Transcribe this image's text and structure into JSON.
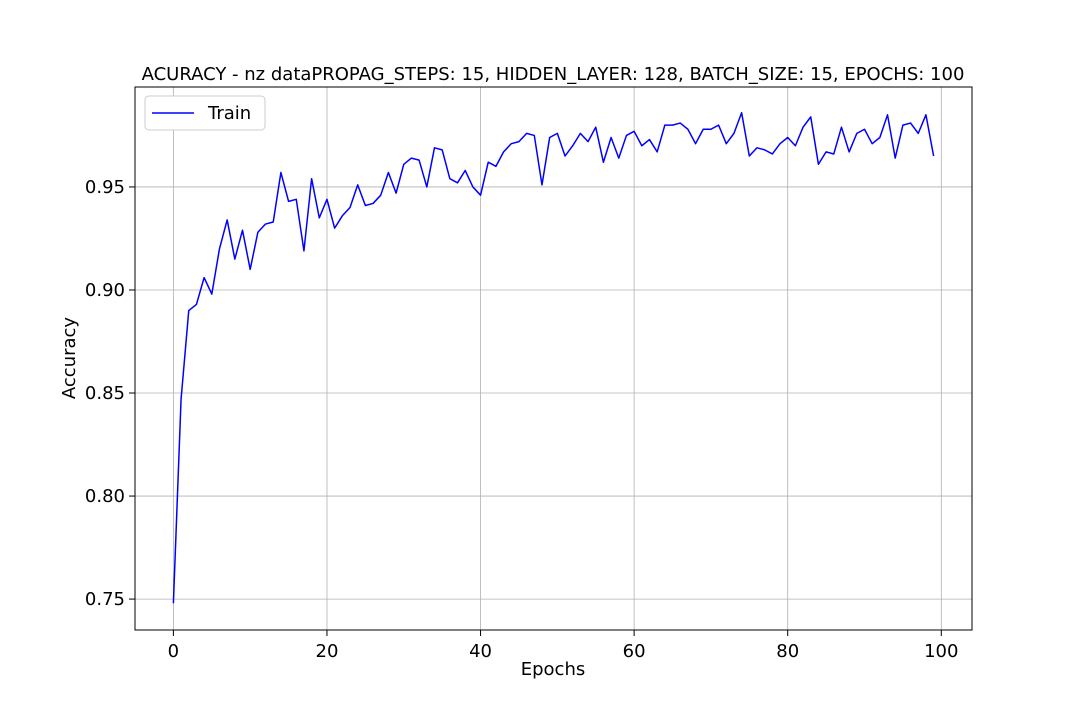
{
  "chart_data": {
    "type": "line",
    "title": "ACURACY - nz dataPROPAG_STEPS: 15, HIDDEN_LAYER: 128, BATCH_SIZE: 15, EPOCHS: 100",
    "xlabel": "Epochs",
    "ylabel": "Accuracy",
    "xlim": [
      -5,
      104
    ],
    "ylim": [
      0.735,
      0.9985
    ],
    "xticks": [
      0,
      20,
      40,
      60,
      80,
      100
    ],
    "xtick_labels": [
      "0",
      "20",
      "40",
      "60",
      "80",
      "100"
    ],
    "yticks": [
      0.75,
      0.8,
      0.85,
      0.9,
      0.95
    ],
    "ytick_labels": [
      "0.75",
      "0.80",
      "0.85",
      "0.90",
      "0.95"
    ],
    "grid": true,
    "legend_position": "top-left",
    "colors": {
      "train": "#0000ff",
      "grid": "#b0b0b0",
      "axes": "#000000"
    },
    "series": [
      {
        "name": "Train",
        "x": [
          0,
          1,
          2,
          3,
          4,
          5,
          6,
          7,
          8,
          9,
          10,
          11,
          12,
          13,
          14,
          15,
          16,
          17,
          18,
          19,
          20,
          21,
          22,
          23,
          24,
          25,
          26,
          27,
          28,
          29,
          30,
          31,
          32,
          33,
          34,
          35,
          36,
          37,
          38,
          39,
          40,
          41,
          42,
          43,
          44,
          45,
          46,
          47,
          48,
          49,
          50,
          51,
          52,
          53,
          54,
          55,
          56,
          57,
          58,
          59,
          60,
          61,
          62,
          63,
          64,
          65,
          66,
          67,
          68,
          69,
          70,
          71,
          72,
          73,
          74,
          75,
          76,
          77,
          78,
          79,
          80,
          81,
          82,
          83,
          84,
          85,
          86,
          87,
          88,
          89,
          90,
          91,
          92,
          93,
          94,
          95,
          96,
          97,
          98,
          99
        ],
        "values": [
          0.748,
          0.847,
          0.89,
          0.893,
          0.906,
          0.898,
          0.92,
          0.934,
          0.915,
          0.929,
          0.91,
          0.928,
          0.932,
          0.933,
          0.957,
          0.943,
          0.944,
          0.919,
          0.954,
          0.935,
          0.944,
          0.93,
          0.936,
          0.94,
          0.951,
          0.941,
          0.942,
          0.946,
          0.957,
          0.947,
          0.961,
          0.964,
          0.963,
          0.95,
          0.969,
          0.968,
          0.954,
          0.952,
          0.958,
          0.95,
          0.946,
          0.962,
          0.96,
          0.967,
          0.971,
          0.972,
          0.976,
          0.975,
          0.951,
          0.974,
          0.976,
          0.965,
          0.97,
          0.976,
          0.972,
          0.979,
          0.962,
          0.974,
          0.964,
          0.975,
          0.977,
          0.97,
          0.973,
          0.967,
          0.98,
          0.98,
          0.981,
          0.978,
          0.971,
          0.978,
          0.978,
          0.98,
          0.971,
          0.976,
          0.986,
          0.965,
          0.969,
          0.968,
          0.966,
          0.971,
          0.974,
          0.97,
          0.979,
          0.984,
          0.961,
          0.967,
          0.966,
          0.979,
          0.967,
          0.976,
          0.978,
          0.971,
          0.974,
          0.985,
          0.964,
          0.98,
          0.981,
          0.976,
          0.985,
          0.965
        ]
      }
    ]
  }
}
